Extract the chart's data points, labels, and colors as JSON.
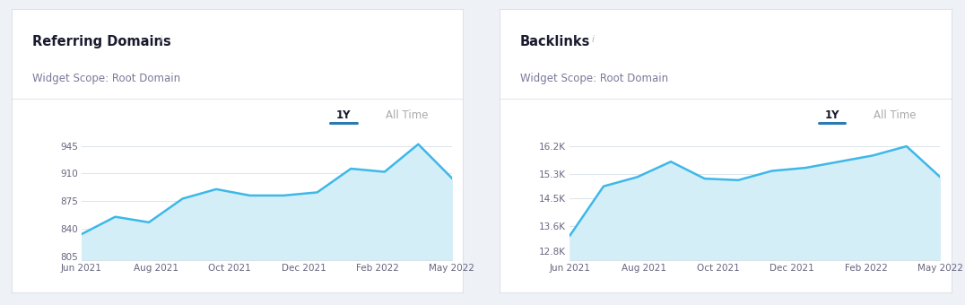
{
  "left_title": "Referring Domains",
  "left_subtitle": "Widget Scope: Root Domain",
  "right_title": "Backlinks",
  "right_subtitle": "Widget Scope: Root Domain",
  "tab_label_1y": "1Y",
  "tab_label_alltime": "All Time",
  "x_labels": [
    "Jun 2021",
    "Aug 2021",
    "Oct 2021",
    "Dec 2021",
    "Feb 2022",
    "May 2022"
  ],
  "left_x": [
    0,
    1,
    2,
    3,
    4,
    5,
    6,
    7,
    8,
    9,
    10,
    11
  ],
  "left_y": [
    833,
    855,
    848,
    878,
    890,
    882,
    882,
    886,
    916,
    912,
    947,
    904
  ],
  "left_yticks": [
    805,
    840,
    875,
    910,
    945
  ],
  "left_ytick_labels": [
    "805",
    "840",
    "875",
    "910",
    "945"
  ],
  "left_ylim": [
    800,
    960
  ],
  "right_x": [
    0,
    1,
    2,
    3,
    4,
    5,
    6,
    7,
    8,
    9,
    10,
    11
  ],
  "right_y": [
    13300,
    14900,
    15200,
    15700,
    15150,
    15100,
    15400,
    15500,
    15700,
    15900,
    16200,
    15200
  ],
  "right_yticks": [
    12800,
    13600,
    14500,
    15300,
    16200
  ],
  "right_ytick_labels": [
    "12.8K",
    "13.6K",
    "14.5K",
    "15.3K",
    "16.2K"
  ],
  "right_ylim": [
    12500,
    16600
  ],
  "line_color": "#3db8e8",
  "fill_color": "#d4eef8",
  "bg_color": "#eef1f5",
  "panel_bg": "#ffffff",
  "panel_border": "#dde2ea",
  "grid_color": "#d8dfe8",
  "title_color": "#1a1a2e",
  "subtitle_color": "#7a7a9a",
  "tab_active_color": "#1a1a2e",
  "tab_inactive_color": "#aaaaaa",
  "tab_underline_color": "#2a7ab5",
  "tick_color": "#666680",
  "xlabel_color": "#666680"
}
